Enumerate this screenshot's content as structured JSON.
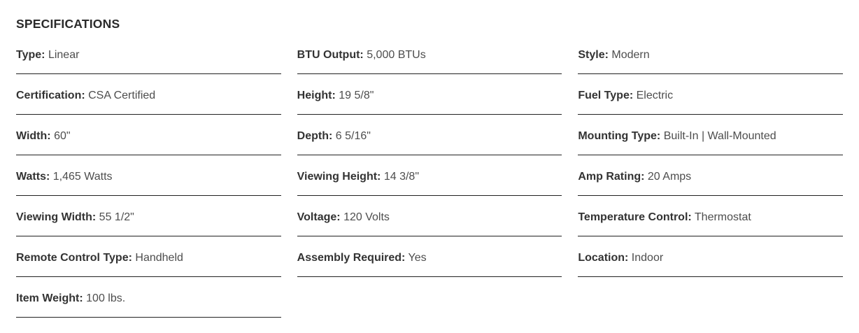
{
  "header": {
    "title": "SPECIFICATIONS"
  },
  "colors": {
    "background": "#ffffff",
    "title_text": "#2b2b2b",
    "label_text": "#333333",
    "value_text": "#4d4d4d",
    "divider": "#222222"
  },
  "specs": {
    "column1": [
      {
        "label": "Type:",
        "value": "Linear"
      },
      {
        "label": "Certification:",
        "value": "CSA Certified"
      },
      {
        "label": "Width:",
        "value": "60\""
      },
      {
        "label": "Watts:",
        "value": "1,465 Watts"
      },
      {
        "label": "Viewing Width:",
        "value": "55 1/2\""
      },
      {
        "label": "Remote Control Type:",
        "value": "Handheld"
      },
      {
        "label": "Item Weight:",
        "value": "100 lbs."
      }
    ],
    "column2": [
      {
        "label": "BTU Output:",
        "value": "5,000 BTUs"
      },
      {
        "label": "Height:",
        "value": "19 5/8\""
      },
      {
        "label": "Depth:",
        "value": "6 5/16\""
      },
      {
        "label": "Viewing Height:",
        "value": "14 3/8\""
      },
      {
        "label": "Voltage:",
        "value": "120 Volts"
      },
      {
        "label": "Assembly Required:",
        "value": "Yes"
      }
    ],
    "column3": [
      {
        "label": "Style:",
        "value": "Modern"
      },
      {
        "label": "Fuel Type:",
        "value": "Electric"
      },
      {
        "label": "Mounting Type:",
        "value": "Built-In | Wall-Mounted"
      },
      {
        "label": "Amp Rating:",
        "value": "20 Amps"
      },
      {
        "label": "Temperature Control:",
        "value": "Thermostat"
      },
      {
        "label": "Location:",
        "value": "Indoor"
      }
    ]
  }
}
